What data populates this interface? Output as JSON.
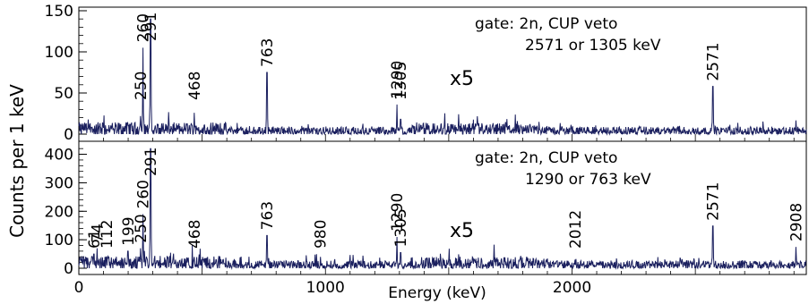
{
  "chart_data": [
    {
      "type": "line",
      "panel": "top",
      "annotation_lines": [
        "gate: 2n, CUP veto",
        "2571 or 1305 keV"
      ],
      "scale_note": "x5",
      "xlim": [
        0,
        2950
      ],
      "ylim": [
        0,
        150
      ],
      "yticks": [
        0,
        50,
        100,
        150
      ],
      "baseline_level": 5,
      "peaks": [
        {
          "x": 250,
          "y": 22,
          "label": "250"
        },
        {
          "x": 260,
          "y": 105,
          "label": "260"
        },
        {
          "x": 291,
          "y": 140,
          "label": "291"
        },
        {
          "x": 468,
          "y": 26,
          "label": "468"
        },
        {
          "x": 763,
          "y": 75,
          "label": "763"
        },
        {
          "x": 1290,
          "y": 36,
          "label": "1290"
        },
        {
          "x": 1305,
          "y": 18,
          "label": "1305"
        },
        {
          "x": 2571,
          "y": 58,
          "label": "2571"
        }
      ],
      "line_color": "#1a1f5e"
    },
    {
      "type": "line",
      "panel": "bottom",
      "annotation_lines": [
        "gate: 2n, CUP veto",
        "1290 or 763 keV"
      ],
      "scale_note": "x5",
      "xlabel": "Energy (keV)",
      "xlim": [
        0,
        2950
      ],
      "xticks": [
        0,
        1000,
        2000
      ],
      "ylim": [
        0,
        430
      ],
      "yticks": [
        0,
        100,
        200,
        300,
        400
      ],
      "baseline_level": 15,
      "peaks": [
        {
          "x": 61,
          "y": 50,
          "label": "61"
        },
        {
          "x": 74,
          "y": 70,
          "label": "74"
        },
        {
          "x": 112,
          "y": 40,
          "label": "112"
        },
        {
          "x": 199,
          "y": 60,
          "label": "199"
        },
        {
          "x": 250,
          "y": 70,
          "label": "250"
        },
        {
          "x": 260,
          "y": 190,
          "label": "260"
        },
        {
          "x": 291,
          "y": 420,
          "label": "291"
        },
        {
          "x": 468,
          "y": 40,
          "label": "468"
        },
        {
          "x": 763,
          "y": 115,
          "label": "763"
        },
        {
          "x": 980,
          "y": 40,
          "label": "980"
        },
        {
          "x": 1290,
          "y": 110,
          "label": "1290"
        },
        {
          "x": 1305,
          "y": 55,
          "label": "1305"
        },
        {
          "x": 2012,
          "y": 30,
          "label": "2012"
        },
        {
          "x": 2571,
          "y": 148,
          "label": "2571"
        },
        {
          "x": 2908,
          "y": 75,
          "label": "2908"
        }
      ],
      "line_color": "#1a1f5e"
    }
  ],
  "ylabel": "Counts per 1 keV"
}
